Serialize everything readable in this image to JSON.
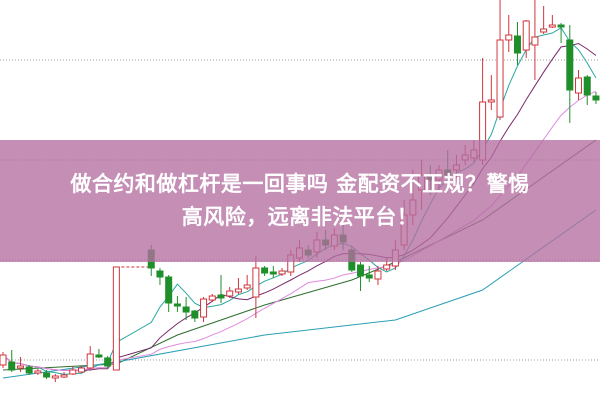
{
  "banner": {
    "line1": "做合约和做杠杆是一回事吗 金配资不正规？警惕",
    "line2": "高风险，远离非法平台！"
  },
  "colors": {
    "up": "#d0353d",
    "down": "#1f8f2a",
    "ma5": "#2aa7a0",
    "ma10": "#7a2a6a",
    "ma20": "#e08ae0",
    "ma30": "#2e6e2e",
    "ma60": "#2a9fb5",
    "grid": "#999999",
    "banner": "#c48db4"
  },
  "chart_data": {
    "type": "candlestick",
    "title": "",
    "xlabel": "",
    "ylabel": "",
    "grid": "horizontal dotted",
    "candles": [
      {
        "i": 0,
        "o": 3.5,
        "c": 4.5,
        "h": 4.8,
        "l": 3.2
      },
      {
        "i": 1,
        "o": 3.8,
        "c": 3.0,
        "h": 5.0,
        "l": 2.8
      },
      {
        "i": 2,
        "o": 3.2,
        "c": 3.4,
        "h": 4.3,
        "l": 2.8
      },
      {
        "i": 3,
        "o": 3.3,
        "c": 2.7,
        "h": 3.5,
        "l": 2.5
      },
      {
        "i": 4,
        "o": 2.7,
        "c": 2.9,
        "h": 3.1,
        "l": 2.5
      },
      {
        "i": 5,
        "o": 2.7,
        "c": 2.3,
        "h": 3.0,
        "l": 2.1
      },
      {
        "i": 6,
        "o": 2.2,
        "c": 2.4,
        "h": 2.6,
        "l": 1.8
      },
      {
        "i": 7,
        "o": 2.3,
        "c": 2.5,
        "h": 2.8,
        "l": 2.2
      },
      {
        "i": 8,
        "o": 2.6,
        "c": 3.0,
        "h": 3.4,
        "l": 2.5
      },
      {
        "i": 9,
        "o": 2.8,
        "c": 3.2,
        "h": 3.4,
        "l": 2.7
      },
      {
        "i": 10,
        "o": 3.2,
        "c": 4.6,
        "h": 5.4,
        "l": 3.0
      },
      {
        "i": 11,
        "o": 4.5,
        "c": 4.3,
        "h": 5.1,
        "l": 4.2
      },
      {
        "i": 12,
        "o": 4.2,
        "c": 3.4,
        "h": 4.4,
        "l": 3.2
      },
      {
        "i": 13,
        "o": 3.0,
        "c": 13.3,
        "h": 13.3,
        "l": 3.0
      },
      {
        "i": 17,
        "o": 15.0,
        "c": 13.2,
        "h": 15.5,
        "l": 12.4
      },
      {
        "i": 18,
        "o": 12.9,
        "c": 12.3,
        "h": 13.2,
        "l": 11.5
      },
      {
        "i": 19,
        "o": 12.3,
        "c": 9.7,
        "h": 12.5,
        "l": 8.8
      },
      {
        "i": 20,
        "o": 9.6,
        "c": 9.4,
        "h": 10.4,
        "l": 8.8
      },
      {
        "i": 21,
        "o": 9.3,
        "c": 8.8,
        "h": 10.3,
        "l": 8.0
      },
      {
        "i": 22,
        "o": 8.9,
        "c": 8.2,
        "h": 9.0,
        "l": 7.8
      },
      {
        "i": 23,
        "o": 8.3,
        "c": 10.1,
        "h": 10.3,
        "l": 7.8
      },
      {
        "i": 24,
        "o": 10.0,
        "c": 10.4,
        "h": 10.6,
        "l": 9.8
      },
      {
        "i": 25,
        "o": 10.5,
        "c": 10.2,
        "h": 12.5,
        "l": 9.7
      },
      {
        "i": 26,
        "o": 10.4,
        "c": 10.9,
        "h": 11.3,
        "l": 10.2
      },
      {
        "i": 27,
        "o": 10.8,
        "c": 11.1,
        "h": 12.2,
        "l": 10.6
      },
      {
        "i": 28,
        "o": 11.2,
        "c": 11.5,
        "h": 12.5,
        "l": 11.0
      },
      {
        "i": 29,
        "o": 10.3,
        "c": 13.2,
        "h": 14.4,
        "l": 8.2
      },
      {
        "i": 30,
        "o": 13.2,
        "c": 12.7,
        "h": 13.4,
        "l": 12.4
      },
      {
        "i": 31,
        "o": 12.8,
        "c": 12.6,
        "h": 13.4,
        "l": 12.2
      },
      {
        "i": 32,
        "o": 12.6,
        "c": 12.9,
        "h": 13.2,
        "l": 12.4
      },
      {
        "i": 33,
        "o": 12.8,
        "c": 14.5,
        "h": 15.0,
        "l": 12.4
      },
      {
        "i": 34,
        "o": 14.2,
        "c": 15.2,
        "h": 16.0,
        "l": 13.8
      },
      {
        "i": 35,
        "o": 15.0,
        "c": 14.5,
        "h": 15.5,
        "l": 14.2
      },
      {
        "i": 36,
        "o": 14.8,
        "c": 16.0,
        "h": 16.8,
        "l": 14.2
      },
      {
        "i": 37,
        "o": 16.0,
        "c": 15.5,
        "h": 17.0,
        "l": 15.0
      },
      {
        "i": 38,
        "o": 15.4,
        "c": 16.5,
        "h": 17.2,
        "l": 15.0
      },
      {
        "i": 39,
        "o": 16.5,
        "c": 15.8,
        "h": 17.5,
        "l": 15.0
      },
      {
        "i": 40,
        "o": 15.0,
        "c": 13.0,
        "h": 15.4,
        "l": 12.8
      },
      {
        "i": 41,
        "o": 13.5,
        "c": 12.4,
        "h": 13.8,
        "l": 10.9
      },
      {
        "i": 42,
        "o": 12.5,
        "c": 12.2,
        "h": 13.4,
        "l": 11.8
      },
      {
        "i": 43,
        "o": 12.1,
        "c": 12.9,
        "h": 13.4,
        "l": 11.5
      },
      {
        "i": 44,
        "o": 13.1,
        "c": 13.5,
        "h": 14.2,
        "l": 12.9
      },
      {
        "i": 45,
        "o": 13.4,
        "c": 15.0,
        "h": 16.0,
        "l": 13.0
      },
      {
        "i": 46,
        "o": 15.5,
        "c": 18.5,
        "h": 20.0,
        "l": 15.0
      },
      {
        "i": 47,
        "o": 18.5,
        "c": 20.0,
        "h": 23.0,
        "l": 17.5
      },
      {
        "i": 48,
        "o": 21.0,
        "c": 22.5,
        "h": 24.0,
        "l": 19.0
      },
      {
        "i": 49,
        "o": 22.5,
        "c": 22.0,
        "h": 23.5,
        "l": 20.5
      },
      {
        "i": 50,
        "o": 22.0,
        "c": 23.0,
        "h": 23.5,
        "l": 21.0
      },
      {
        "i": 51,
        "o": 23.0,
        "c": 22.5,
        "h": 25.0,
        "l": 22.0
      },
      {
        "i": 52,
        "o": 23.0,
        "c": 23.5,
        "h": 24.5,
        "l": 22.2
      },
      {
        "i": 53,
        "o": 24.0,
        "c": 24.5,
        "h": 25.5,
        "l": 23.5
      },
      {
        "i": 54,
        "o": 24.2,
        "c": 25.0,
        "h": 26.0,
        "l": 23.8
      },
      {
        "i": 55,
        "o": 24.0,
        "c": 29.8,
        "h": 34.2,
        "l": 23.5
      },
      {
        "i": 56,
        "o": 29.8,
        "c": 30.0,
        "h": 32.5,
        "l": 29.0
      },
      {
        "i": 57,
        "o": 28.3,
        "c": 36.0,
        "h": 40.0,
        "l": 28.0
      },
      {
        "i": 58,
        "o": 36.0,
        "c": 36.5,
        "h": 38.5,
        "l": 34.8
      },
      {
        "i": 59,
        "o": 36.4,
        "c": 34.7,
        "h": 37.8,
        "l": 33.5
      },
      {
        "i": 60,
        "o": 35.0,
        "c": 37.9,
        "h": 38.0,
        "l": 34.2
      },
      {
        "i": 61,
        "o": 35.5,
        "c": 36.3,
        "h": 40.0,
        "l": 32.0
      },
      {
        "i": 62,
        "o": 36.8,
        "c": 37.1,
        "h": 39.4,
        "l": 36.6
      },
      {
        "i": 63,
        "o": 37.3,
        "c": 37.5,
        "h": 38.5,
        "l": 37.2
      },
      {
        "i": 64,
        "o": 37.5,
        "c": 37.3,
        "h": 37.7,
        "l": 35.7
      },
      {
        "i": 65,
        "o": 36.0,
        "c": 31.0,
        "h": 37.5,
        "l": 27.7
      },
      {
        "i": 66,
        "o": 30.7,
        "c": 32.2,
        "h": 33.0,
        "l": 30.0
      },
      {
        "i": 67,
        "o": 32.3,
        "c": 30.5,
        "h": 32.5,
        "l": 29.5
      },
      {
        "i": 68,
        "o": 30.4,
        "c": 30.0,
        "h": 30.8,
        "l": 29.6
      }
    ],
    "moving_averages_computed": [
      5,
      10,
      20
    ],
    "long_ma": [
      {
        "key": "ma30",
        "points": [
          [
            0,
            3.0
          ],
          [
            13,
            3.6
          ],
          [
            20,
            6.5
          ],
          [
            30,
            9.5
          ],
          [
            40,
            12.0
          ],
          [
            45,
            13.8
          ],
          [
            55,
            18.0
          ],
          [
            68,
            26.0
          ]
        ]
      },
      {
        "key": "ma60",
        "points": [
          [
            0,
            2.2
          ],
          [
            13,
            3.8
          ],
          [
            30,
            6.5
          ],
          [
            45,
            8.0
          ],
          [
            55,
            11.0
          ],
          [
            68,
            19.0
          ]
        ]
      }
    ],
    "ylim": [
      0,
      40
    ],
    "gridlines": [
      4,
      14,
      24,
      34
    ]
  }
}
